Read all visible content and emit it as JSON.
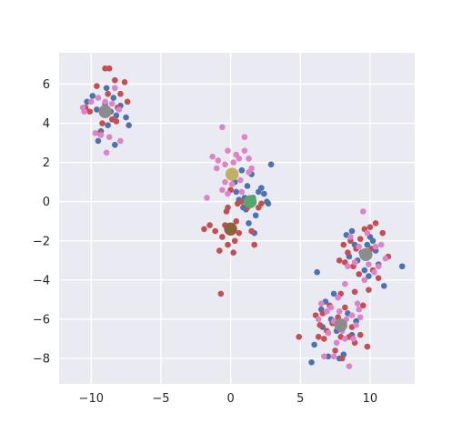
{
  "chart_data": {
    "type": "scatter",
    "xlim": [
      -12.3,
      13.2
    ],
    "ylim": [
      -9.3,
      7.6
    ],
    "x_ticks": [
      -10,
      -5,
      0,
      5,
      10
    ],
    "y_ticks": [
      -8,
      -6,
      -4,
      -2,
      0,
      2,
      4,
      6
    ],
    "x_tick_labels": [
      "−10",
      "−5",
      "0",
      "5",
      "10"
    ],
    "y_tick_labels": [
      "−8",
      "−6",
      "−4",
      "−2",
      "0",
      "2",
      "4",
      "6"
    ],
    "grid": true,
    "style": "seaborn-darkgrid",
    "colors": {
      "background": "#eaeaf2",
      "grid": "#ffffff",
      "blue": "#4c72b0",
      "red": "#c44e52",
      "pink": "#dd84c8",
      "centroid_tan": "#c4ad66",
      "centroid_green": "#55a868",
      "centroid_brown": "#8c613c",
      "centroid_gray": "#8c8c8c"
    },
    "series": [
      {
        "color": "#4c72b0",
        "points": [
          [
            -9.9,
            5.4
          ],
          [
            -10.3,
            5.1
          ],
          [
            -9.6,
            4.7
          ],
          [
            -9.3,
            3.6
          ],
          [
            -8.8,
            3.9
          ],
          [
            -8.4,
            5.3
          ],
          [
            -8.2,
            4.4
          ],
          [
            -7.9,
            4.9
          ],
          [
            -7.5,
            4.3
          ],
          [
            -9.0,
            5.0
          ],
          [
            -8.6,
            4.6
          ],
          [
            -7.3,
            3.9
          ],
          [
            -9.5,
            3.1
          ],
          [
            -8.3,
            2.9
          ],
          [
            -8.9,
            5.8
          ],
          [
            0.3,
            1.0
          ],
          [
            0.8,
            1.6
          ],
          [
            1.2,
            0.8
          ],
          [
            1.6,
            0.2
          ],
          [
            2.0,
            0.5
          ],
          [
            2.4,
            0.4
          ],
          [
            2.7,
            -0.1
          ],
          [
            2.9,
            1.9
          ],
          [
            1.1,
            -0.4
          ],
          [
            0.6,
            0.1
          ],
          [
            1.5,
            1.4
          ],
          [
            1.8,
            -0.7
          ],
          [
            1.3,
            -1.1
          ],
          [
            2.2,
            0.7
          ],
          [
            0.9,
            -0.3
          ],
          [
            1.7,
            -1.6
          ],
          [
            0.4,
            0.5
          ],
          [
            2.6,
            0.0
          ],
          [
            1.0,
            0.2
          ],
          [
            8.3,
            -1.7
          ],
          [
            8.9,
            -2.2
          ],
          [
            9.4,
            -2.6
          ],
          [
            9.8,
            -2.2
          ],
          [
            10.2,
            -2.0
          ],
          [
            10.6,
            -3.2
          ],
          [
            11.0,
            -4.3
          ],
          [
            12.3,
            -3.3
          ],
          [
            9.1,
            -3.0
          ],
          [
            8.5,
            -2.8
          ],
          [
            10.4,
            -2.5
          ],
          [
            9.6,
            -3.5
          ],
          [
            8.7,
            -1.5
          ],
          [
            10.0,
            -1.8
          ],
          [
            9.9,
            -3.8
          ],
          [
            6.5,
            -5.5
          ],
          [
            6.8,
            -5.1
          ],
          [
            7.2,
            -6.0
          ],
          [
            7.6,
            -6.6
          ],
          [
            8.0,
            -6.2
          ],
          [
            8.4,
            -5.7
          ],
          [
            8.7,
            -6.8
          ],
          [
            6.0,
            -7.3
          ],
          [
            5.8,
            -8.2
          ],
          [
            7.0,
            -7.9
          ],
          [
            8.1,
            -7.8
          ],
          [
            7.4,
            -4.7
          ],
          [
            6.2,
            -3.6
          ],
          [
            7.8,
            -8.0
          ],
          [
            9.0,
            -6.1
          ],
          [
            6.6,
            -6.4
          ]
        ]
      },
      {
        "color": "#c44e52",
        "points": [
          [
            -9.0,
            6.8
          ],
          [
            -8.7,
            6.8
          ],
          [
            -9.6,
            5.9
          ],
          [
            -8.3,
            6.2
          ],
          [
            -7.6,
            6.1
          ],
          [
            -10.1,
            4.6
          ],
          [
            -8.5,
            4.2
          ],
          [
            -9.2,
            4.0
          ],
          [
            -7.9,
            5.5
          ],
          [
            -7.4,
            5.1
          ],
          [
            -8.1,
            4.8
          ],
          [
            -9.4,
            3.5
          ],
          [
            -8.2,
            4.1
          ],
          [
            -10.4,
            4.8
          ],
          [
            -8.8,
            5.5
          ],
          [
            -1.5,
            -1.2
          ],
          [
            -1.1,
            -1.5
          ],
          [
            -0.6,
            -1.8
          ],
          [
            -0.2,
            -2.2
          ],
          [
            0.3,
            -2.0
          ],
          [
            0.6,
            -1.6
          ],
          [
            -0.4,
            -1.2
          ],
          [
            -0.8,
            -2.5
          ],
          [
            0.2,
            -2.6
          ],
          [
            1.5,
            -1.5
          ],
          [
            1.7,
            -2.2
          ],
          [
            -1.9,
            -1.4
          ],
          [
            -0.7,
            -4.7
          ],
          [
            0.4,
            -1.0
          ],
          [
            -0.3,
            -0.5
          ],
          [
            0.5,
            -0.1
          ],
          [
            0.8,
            0.0
          ],
          [
            1.2,
            -0.3
          ],
          [
            -0.2,
            -0.3
          ],
          [
            0.0,
            0.6
          ],
          [
            2.0,
            -0.3
          ],
          [
            2.2,
            -0.1
          ],
          [
            8.1,
            -2.2
          ],
          [
            8.6,
            -2.0
          ],
          [
            9.0,
            -2.4
          ],
          [
            9.3,
            -1.9
          ],
          [
            9.7,
            -2.8
          ],
          [
            10.1,
            -2.4
          ],
          [
            10.4,
            -1.1
          ],
          [
            10.9,
            -1.6
          ],
          [
            11.3,
            -2.8
          ],
          [
            8.2,
            -3.1
          ],
          [
            8.8,
            -3.3
          ],
          [
            9.2,
            -3.7
          ],
          [
            9.9,
            -4.5
          ],
          [
            10.6,
            -3.9
          ],
          [
            8.4,
            -2.6
          ],
          [
            9.6,
            -1.4
          ],
          [
            10.2,
            -3.5
          ],
          [
            8.9,
            -4.6
          ],
          [
            7.8,
            -3.0
          ],
          [
            9.5,
            -5.3
          ],
          [
            10.0,
            -1.3
          ],
          [
            6.1,
            -5.8
          ],
          [
            6.4,
            -6.3
          ],
          [
            6.9,
            -6.6
          ],
          [
            7.3,
            -6.2
          ],
          [
            7.7,
            -5.9
          ],
          [
            8.2,
            -5.4
          ],
          [
            8.5,
            -6.9
          ],
          [
            8.9,
            -7.2
          ],
          [
            7.1,
            -5.3
          ],
          [
            6.7,
            -7.0
          ],
          [
            7.9,
            -4.7
          ],
          [
            8.7,
            -6.4
          ],
          [
            9.3,
            -6.8
          ],
          [
            6.3,
            -6.9
          ],
          [
            4.9,
            -6.9
          ],
          [
            7.5,
            -7.6
          ],
          [
            8.0,
            -8.0
          ],
          [
            9.8,
            -7.4
          ],
          [
            6.6,
            -5.7
          ],
          [
            7.9,
            -6.9
          ]
        ]
      },
      {
        "color": "#dd84c8",
        "points": [
          [
            -10.6,
            4.8
          ],
          [
            -10.0,
            5.1
          ],
          [
            -9.5,
            5.3
          ],
          [
            -9.0,
            5.1
          ],
          [
            -8.5,
            5.0
          ],
          [
            -8.9,
            4.6
          ],
          [
            -9.7,
            3.5
          ],
          [
            -9.3,
            3.4
          ],
          [
            -8.7,
            3.3
          ],
          [
            -7.9,
            3.1
          ],
          [
            -8.3,
            5.8
          ],
          [
            -9.2,
            4.5
          ],
          [
            -8.9,
            2.5
          ],
          [
            -10.5,
            4.6
          ],
          [
            -8.0,
            4.7
          ],
          [
            -0.6,
            3.8
          ],
          [
            1.0,
            3.3
          ],
          [
            -1.3,
            2.3
          ],
          [
            -0.9,
            2.1
          ],
          [
            -0.4,
            1.9
          ],
          [
            0.2,
            2.0
          ],
          [
            0.6,
            2.2
          ],
          [
            1.0,
            2.6
          ],
          [
            1.3,
            2.2
          ],
          [
            1.5,
            1.7
          ],
          [
            -1.0,
            1.7
          ],
          [
            -0.4,
            1.0
          ],
          [
            0.1,
            0.9
          ],
          [
            0.7,
            1.1
          ],
          [
            -0.2,
            0.4
          ],
          [
            -0.6,
            0.6
          ],
          [
            -1.7,
            0.2
          ],
          [
            1.3,
            1.5
          ],
          [
            0.4,
            2.4
          ],
          [
            -0.2,
            2.6
          ],
          [
            0.8,
            0.5
          ],
          [
            8.6,
            -1.8
          ],
          [
            9.2,
            -2.3
          ],
          [
            9.5,
            -0.5
          ],
          [
            9.8,
            -1.6
          ],
          [
            10.4,
            -2.3
          ],
          [
            10.8,
            -2.2
          ],
          [
            11.1,
            -2.9
          ],
          [
            8.4,
            -3.3
          ],
          [
            8.9,
            -3.1
          ],
          [
            9.9,
            -3.2
          ],
          [
            10.3,
            -3.6
          ],
          [
            8.2,
            -4.2
          ],
          [
            9.6,
            -4.0
          ],
          [
            10.6,
            -3.3
          ],
          [
            9.1,
            -5.2
          ],
          [
            6.5,
            -5.2
          ],
          [
            6.9,
            -5.6
          ],
          [
            7.4,
            -6.1
          ],
          [
            7.8,
            -5.6
          ],
          [
            8.3,
            -6.0
          ],
          [
            8.7,
            -5.8
          ],
          [
            9.2,
            -5.5
          ],
          [
            7.0,
            -6.7
          ],
          [
            7.6,
            -7.2
          ],
          [
            8.2,
            -7.0
          ],
          [
            6.7,
            -7.9
          ],
          [
            7.4,
            -7.9
          ],
          [
            8.5,
            -8.4
          ],
          [
            9.3,
            -5.9
          ],
          [
            7.2,
            -5.4
          ],
          [
            8.0,
            -6.6
          ],
          [
            9.0,
            -6.3
          ],
          [
            6.3,
            -6.0
          ],
          [
            8.8,
            -7.0
          ],
          [
            7.7,
            -4.9
          ]
        ]
      }
    ],
    "centroids": [
      {
        "x": -9.0,
        "y": 4.6,
        "color": "#8c8c8c"
      },
      {
        "x": 0.1,
        "y": 1.4,
        "color": "#c4ad66"
      },
      {
        "x": 1.4,
        "y": 0.0,
        "color": "#55a868"
      },
      {
        "x": 0.0,
        "y": -1.4,
        "color": "#8c613c"
      },
      {
        "x": 9.7,
        "y": -2.7,
        "color": "#8c8c8c"
      },
      {
        "x": 7.9,
        "y": -6.3,
        "color": "#8c8c8c"
      }
    ]
  }
}
